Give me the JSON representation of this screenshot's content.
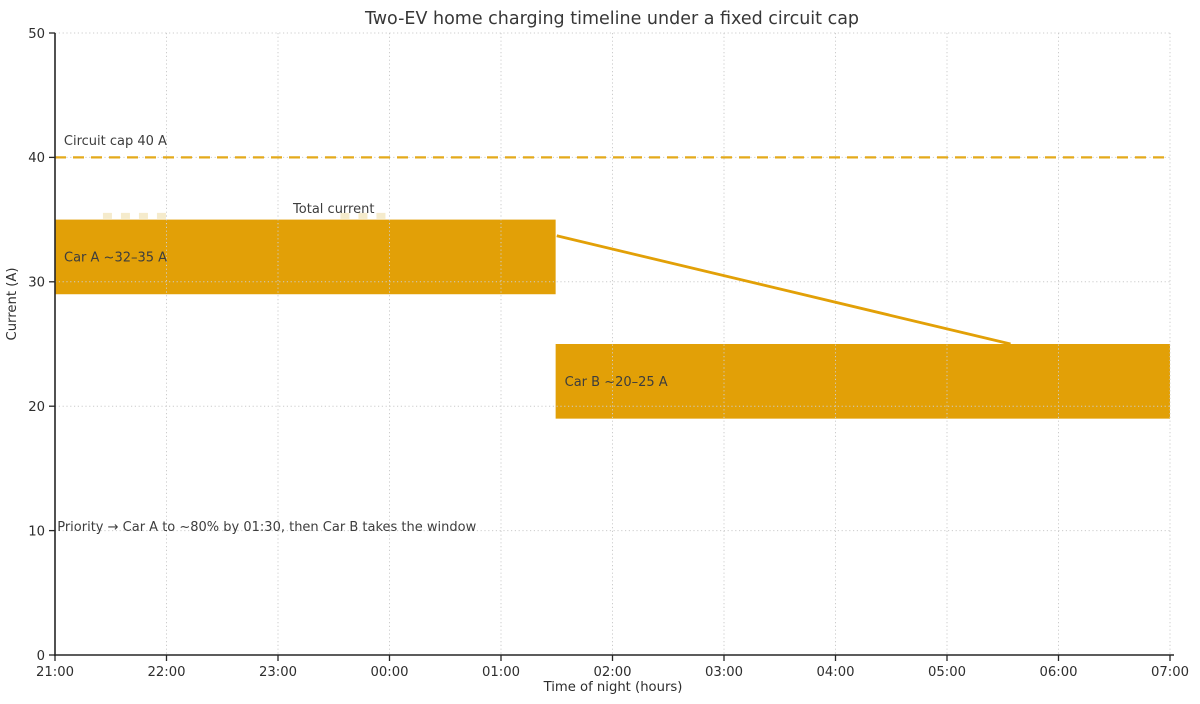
{
  "chart_data": {
    "type": "bar",
    "title": "Two-EV home charging timeline under a fixed circuit cap",
    "xlabel": "Time of night (hours)",
    "ylabel": "Current (A)",
    "x_tick_labels": [
      "21:00",
      "22:00",
      "23:00",
      "00:00",
      "01:00",
      "02:00",
      "03:00",
      "04:00",
      "05:00",
      "06:00",
      "07:00"
    ],
    "x_tick_hours": [
      0,
      1,
      2,
      3,
      4,
      5,
      6,
      7,
      8,
      9,
      10
    ],
    "x_range": [
      0,
      10
    ],
    "y_ticks": [
      0,
      10,
      20,
      30,
      40,
      50
    ],
    "ylim": [
      0,
      50
    ],
    "grid": "dotted",
    "legend_position": "none",
    "cap_line": {
      "y": 40,
      "label": "Circuit cap 40 A",
      "label_pos": {
        "x": 0.08,
        "y": 41.0
      },
      "style": "dashed"
    },
    "bars": [
      {
        "id": "car-a",
        "label": "Car A ~32–35 A",
        "x_start": 0,
        "x_end": 4.49,
        "y_low": 29,
        "y_high": 35
      },
      {
        "id": "car-b",
        "label": "Car B ~20–25 A",
        "x_start": 4.49,
        "x_end": 10,
        "y_low": 19,
        "y_high": 25
      }
    ],
    "total_line": {
      "label": "Total current",
      "label_pos": {
        "x": 2.5,
        "y": 35.55
      },
      "points": [
        [
          4.5,
          33.7
        ],
        [
          8.57,
          25.0
        ]
      ]
    },
    "annotation": {
      "text": "Priority → Car A to ~80% by 01:30, then Car B takes the window",
      "x": 0.02,
      "y": 10.35
    },
    "ghost_dashes": {
      "y": 35.3,
      "segments": [
        [
          0.43,
          1.0
        ],
        [
          2.56,
          2.98
        ]
      ]
    },
    "colors": {
      "bar": "#e2a007",
      "total_line": "#e2a007",
      "cap_line": "#e4aa1b",
      "grid": "#cccccc",
      "spine": "#262626",
      "tick_text": "#2e2e2e",
      "title_text": "#373737",
      "label_text": "#3d3d3d",
      "ghost": "#f5ebcc",
      "background": "#ffffff"
    }
  }
}
